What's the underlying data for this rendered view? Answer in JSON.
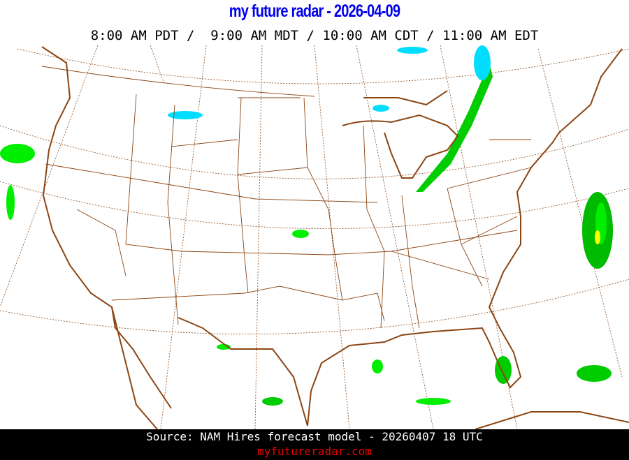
{
  "header": {
    "title": "my future radar - 2026-04-09",
    "times": "8:00 AM PDT /  9:00 AM MDT / 10:00 AM CDT / 11:00 AM EDT"
  },
  "map": {
    "region": "Continental United States",
    "layers": [
      "radar-reflectivity",
      "state-borders",
      "coastlines",
      "lat-lon-grid"
    ],
    "colors": {
      "borders": "#8b4513",
      "grid": "#8b4513",
      "rain_light": "#00ee00",
      "rain_moderate": "#00aa00",
      "rain_heavy": "#ffff00",
      "snow": "#00ddff"
    }
  },
  "footer": {
    "source": "Source: NAM Hires forecast model - 20260407 18 UTC",
    "site": "myfutureradar.com"
  }
}
